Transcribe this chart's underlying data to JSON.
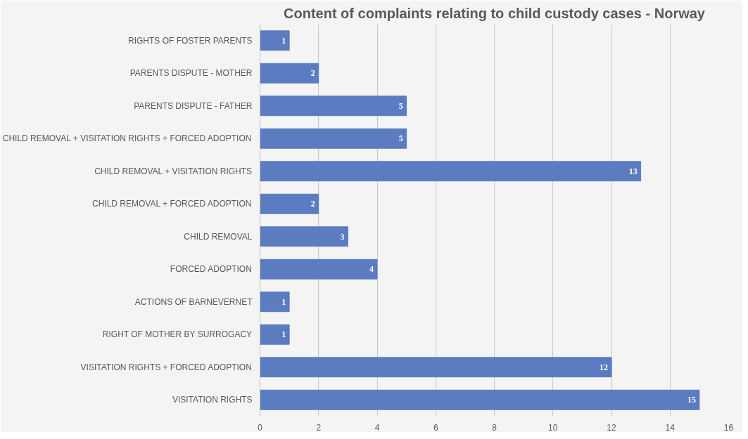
{
  "chart_data": {
    "type": "bar",
    "orientation": "horizontal",
    "title": "Content of complaints relating to child custody cases - Norway",
    "categories": [
      "RIGHTS OF FOSTER PARENTS",
      "PARENTS DISPUTE - MOTHER",
      "PARENTS DISPUTE - FATHER",
      "CHILD REMOVAL + VISITATION RIGHTS + FORCED ADOPTION",
      "CHILD REMOVAL + VISITATION RIGHTS",
      "CHILD REMOVAL + FORCED ADOPTION",
      "CHILD REMOVAL",
      "FORCED ADOPTION",
      "ACTIONS OF BARNEVERNET",
      "RIGHT OF MOTHER BY SURROGACY",
      "VISITATION RIGHTS + FORCED ADOPTION",
      "VISITATION RIGHTS"
    ],
    "values": [
      1,
      2,
      5,
      5,
      13,
      2,
      3,
      4,
      1,
      1,
      12,
      15
    ],
    "color": "#5b7cc0",
    "xlim": [
      0,
      16
    ],
    "xticks": [
      0,
      2,
      4,
      6,
      8,
      10,
      12,
      14,
      16
    ],
    "grid": "x",
    "data_labels": true
  }
}
